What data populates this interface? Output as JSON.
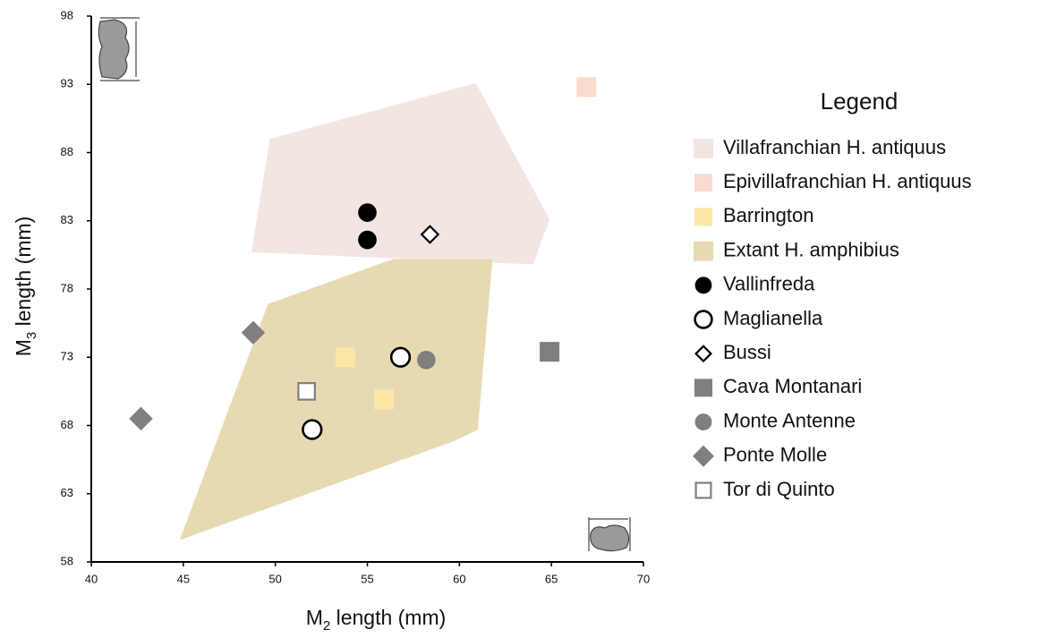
{
  "chart_data": {
    "type": "scatter",
    "x_label": {
      "text": "M",
      "subscript": "2",
      "suffix": " length (mm)"
    },
    "y_label": {
      "text": "M",
      "subscript": "3",
      "suffix": " length (mm)"
    },
    "legend_title": "Legend",
    "xlim": [
      40,
      70
    ],
    "xticks": [
      40,
      45,
      50,
      55,
      60,
      65,
      70
    ],
    "ylim": [
      58,
      98
    ],
    "yticks": [
      58,
      63,
      68,
      73,
      78,
      83,
      88,
      93,
      98
    ],
    "grid": false,
    "series": [
      {
        "name": "Villafranchian H. antiquus",
        "color": "#f3e6e2",
        "marker": "area",
        "x": [
          49.7,
          60.9,
          64.9,
          64.0,
          48.7
        ],
        "values": [
          89.0,
          93.1,
          83.1,
          79.8,
          80.7
        ]
      },
      {
        "name": "Epivillafranchian H. antiquus",
        "color": "#fadbcf",
        "marker": "square",
        "x": [
          66.9
        ],
        "values": [
          92.8
        ]
      },
      {
        "name": "Barrington",
        "color": "#fbe8a8",
        "marker": "square",
        "x": [
          53.8,
          55.9
        ],
        "values": [
          73.0,
          69.9
        ]
      },
      {
        "name": "Extant H. amphibius",
        "color": "#e7dab2",
        "marker": "area",
        "x": [
          44.8,
          49.6,
          56.4,
          61.8,
          61.0,
          59.8
        ],
        "values": [
          59.6,
          76.9,
          80.2,
          80.2,
          67.7,
          66.9
        ]
      },
      {
        "name": "Vallinfreda",
        "color": "#000000",
        "marker": "circle",
        "x": [
          55.0,
          55.0
        ],
        "values": [
          83.6,
          81.6
        ]
      },
      {
        "name": "Maglianella",
        "color": "#000000",
        "marker": "circle-open",
        "x": [
          56.8,
          52.0
        ],
        "values": [
          73.0,
          67.7
        ]
      },
      {
        "name": "Bussi",
        "color": "#000000",
        "marker": "diamond-open",
        "x": [
          58.4
        ],
        "values": [
          82.0
        ]
      },
      {
        "name": "Cava Montanari",
        "color": "#7f7f7f",
        "marker": "square",
        "x": [
          64.9
        ],
        "values": [
          73.4
        ]
      },
      {
        "name": "Monte Antenne",
        "color": "#7f7f7f",
        "marker": "circle",
        "x": [
          58.2
        ],
        "values": [
          72.8
        ]
      },
      {
        "name": "Ponte Molle",
        "color": "#7f7f7f",
        "marker": "diamond",
        "x": [
          48.8,
          42.7
        ],
        "values": [
          74.8,
          68.5
        ]
      },
      {
        "name": "Tor di Quinto",
        "color": "#7f7f7f",
        "marker": "square-open",
        "x": [
          51.7
        ],
        "values": [
          70.5
        ]
      }
    ]
  }
}
